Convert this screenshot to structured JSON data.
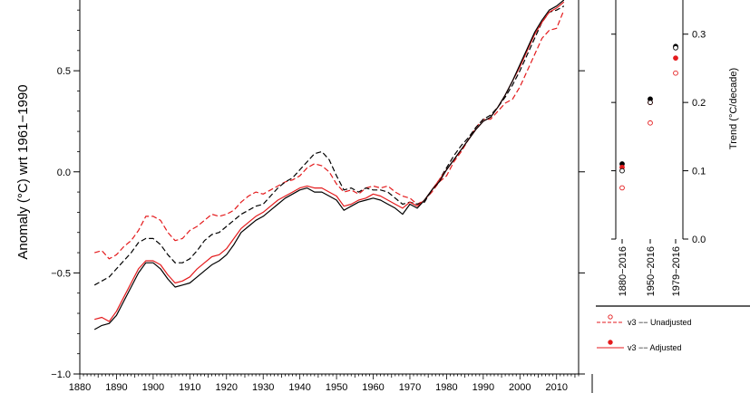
{
  "chart_data": [
    {
      "type": "line",
      "ylabel": "Anomaly (°C) wrt 1961−1990",
      "xlim": [
        1880,
        2016
      ],
      "ylim": [
        -1.0,
        0.85
      ],
      "xticks": [
        "1880",
        "1890",
        "1900",
        "1910",
        "1920",
        "1930",
        "1940",
        "1950",
        "1960",
        "1970",
        "1980",
        "1990",
        "2000",
        "2010"
      ],
      "yticks": [
        {
          "value": -1.0,
          "label": "−1.0"
        },
        {
          "value": -0.5,
          "label": "−0.5"
        },
        {
          "value": 0.0,
          "label": "0.0"
        },
        {
          "value": 0.5,
          "label": "0.5"
        }
      ],
      "series": [
        {
          "key": "v3u",
          "color": "#e41a1c",
          "dash": true,
          "x": [
            1884,
            1886,
            1888,
            1890,
            1892,
            1894,
            1896,
            1898,
            1900,
            1902,
            1904,
            1906,
            1908,
            1910,
            1912,
            1914,
            1916,
            1918,
            1920,
            1922,
            1924,
            1926,
            1928,
            1930,
            1932,
            1934,
            1936,
            1938,
            1940,
            1942,
            1944,
            1946,
            1948,
            1950,
            1952,
            1954,
            1956,
            1958,
            1960,
            1962,
            1964,
            1966,
            1968,
            1970,
            1972,
            1974,
            1976,
            1978,
            1980,
            1982,
            1984,
            1986,
            1988,
            1990,
            1992,
            1994,
            1996,
            1998,
            2000,
            2002,
            2004,
            2006,
            2008,
            2010,
            2012
          ],
          "y": [
            -0.4,
            -0.39,
            -0.43,
            -0.41,
            -0.37,
            -0.34,
            -0.29,
            -0.22,
            -0.22,
            -0.24,
            -0.3,
            -0.34,
            -0.33,
            -0.29,
            -0.27,
            -0.24,
            -0.21,
            -0.22,
            -0.21,
            -0.19,
            -0.15,
            -0.12,
            -0.1,
            -0.11,
            -0.09,
            -0.07,
            -0.05,
            -0.04,
            -0.02,
            0.02,
            0.04,
            0.03,
            0.0,
            -0.06,
            -0.1,
            -0.09,
            -0.11,
            -0.08,
            -0.07,
            -0.08,
            -0.07,
            -0.1,
            -0.12,
            -0.13,
            -0.16,
            -0.14,
            -0.1,
            -0.05,
            -0.02,
            0.05,
            0.1,
            0.16,
            0.22,
            0.26,
            0.26,
            0.3,
            0.34,
            0.36,
            0.42,
            0.5,
            0.58,
            0.66,
            0.7,
            0.71,
            0.8
          ]
        },
        {
          "key": "v4u",
          "color": "#000000",
          "dash": true,
          "x": [
            1884,
            1886,
            1888,
            1890,
            1892,
            1894,
            1896,
            1898,
            1900,
            1902,
            1904,
            1906,
            1908,
            1910,
            1912,
            1914,
            1916,
            1918,
            1920,
            1922,
            1924,
            1926,
            1928,
            1930,
            1932,
            1934,
            1936,
            1938,
            1940,
            1942,
            1944,
            1946,
            1948,
            1950,
            1952,
            1954,
            1956,
            1958,
            1960,
            1962,
            1964,
            1966,
            1968,
            1970,
            1972,
            1974,
            1976,
            1978,
            1980,
            1982,
            1984,
            1986,
            1988,
            1990,
            1992,
            1994,
            1996,
            1998,
            2000,
            2002,
            2004,
            2006,
            2008,
            2010,
            2012
          ],
          "y": [
            -0.56,
            -0.54,
            -0.52,
            -0.48,
            -0.44,
            -0.4,
            -0.35,
            -0.33,
            -0.33,
            -0.36,
            -0.41,
            -0.45,
            -0.45,
            -0.43,
            -0.39,
            -0.34,
            -0.31,
            -0.3,
            -0.27,
            -0.24,
            -0.21,
            -0.19,
            -0.17,
            -0.16,
            -0.12,
            -0.08,
            -0.05,
            -0.03,
            0.01,
            0.05,
            0.09,
            0.1,
            0.06,
            -0.02,
            -0.09,
            -0.08,
            -0.1,
            -0.08,
            -0.09,
            -0.09,
            -0.1,
            -0.13,
            -0.16,
            -0.15,
            -0.16,
            -0.15,
            -0.09,
            -0.04,
            0.02,
            0.08,
            0.13,
            0.17,
            0.22,
            0.26,
            0.28,
            0.32,
            0.37,
            0.43,
            0.5,
            0.58,
            0.66,
            0.74,
            0.79,
            0.8,
            0.82
          ]
        },
        {
          "key": "v3a",
          "color": "#e41a1c",
          "dash": false,
          "x": [
            1884,
            1886,
            1888,
            1890,
            1892,
            1894,
            1896,
            1898,
            1900,
            1902,
            1904,
            1906,
            1908,
            1910,
            1912,
            1914,
            1916,
            1918,
            1920,
            1922,
            1924,
            1926,
            1928,
            1930,
            1932,
            1934,
            1936,
            1938,
            1940,
            1942,
            1944,
            1946,
            1948,
            1950,
            1952,
            1954,
            1956,
            1958,
            1960,
            1962,
            1964,
            1966,
            1968,
            1970,
            1972,
            1974,
            1976,
            1978,
            1980,
            1982,
            1984,
            1986,
            1988,
            1990,
            1992,
            1994,
            1996,
            1998,
            2000,
            2002,
            2004,
            2006,
            2008,
            2010,
            2012
          ],
          "y": [
            -0.73,
            -0.72,
            -0.74,
            -0.69,
            -0.62,
            -0.55,
            -0.48,
            -0.44,
            -0.44,
            -0.46,
            -0.51,
            -0.55,
            -0.54,
            -0.52,
            -0.48,
            -0.45,
            -0.42,
            -0.41,
            -0.38,
            -0.33,
            -0.28,
            -0.25,
            -0.22,
            -0.2,
            -0.17,
            -0.14,
            -0.12,
            -0.1,
            -0.08,
            -0.07,
            -0.08,
            -0.08,
            -0.1,
            -0.12,
            -0.17,
            -0.16,
            -0.14,
            -0.13,
            -0.11,
            -0.12,
            -0.14,
            -0.16,
            -0.18,
            -0.15,
            -0.17,
            -0.14,
            -0.09,
            -0.04,
            0.01,
            0.06,
            0.11,
            0.16,
            0.21,
            0.25,
            0.27,
            0.32,
            0.38,
            0.45,
            0.52,
            0.6,
            0.68,
            0.74,
            0.79,
            0.81,
            0.84
          ]
        },
        {
          "key": "v4a",
          "color": "#000000",
          "dash": false,
          "x": [
            1884,
            1886,
            1888,
            1890,
            1892,
            1894,
            1896,
            1898,
            1900,
            1902,
            1904,
            1906,
            1908,
            1910,
            1912,
            1914,
            1916,
            1918,
            1920,
            1922,
            1924,
            1926,
            1928,
            1930,
            1932,
            1934,
            1936,
            1938,
            1940,
            1942,
            1944,
            1946,
            1948,
            1950,
            1952,
            1954,
            1956,
            1958,
            1960,
            1962,
            1964,
            1966,
            1968,
            1970,
            1972,
            1974,
            1976,
            1978,
            1980,
            1982,
            1984,
            1986,
            1988,
            1990,
            1992,
            1994,
            1996,
            1998,
            2000,
            2002,
            2004,
            2006,
            2008,
            2010,
            2012
          ],
          "y": [
            -0.78,
            -0.76,
            -0.75,
            -0.71,
            -0.64,
            -0.57,
            -0.5,
            -0.45,
            -0.45,
            -0.48,
            -0.53,
            -0.57,
            -0.56,
            -0.55,
            -0.52,
            -0.49,
            -0.46,
            -0.44,
            -0.41,
            -0.36,
            -0.3,
            -0.27,
            -0.24,
            -0.22,
            -0.19,
            -0.16,
            -0.13,
            -0.11,
            -0.09,
            -0.08,
            -0.1,
            -0.1,
            -0.12,
            -0.14,
            -0.19,
            -0.17,
            -0.15,
            -0.14,
            -0.13,
            -0.14,
            -0.16,
            -0.18,
            -0.21,
            -0.16,
            -0.18,
            -0.14,
            -0.09,
            -0.05,
            0.01,
            0.06,
            0.11,
            0.16,
            0.21,
            0.25,
            0.27,
            0.32,
            0.38,
            0.45,
            0.53,
            0.61,
            0.69,
            0.75,
            0.8,
            0.82,
            0.85
          ]
        }
      ]
    },
    {
      "type": "scatter",
      "ylabel": "Trend (°C/decade)",
      "ylim": [
        0.0,
        0.35
      ],
      "yticks": [
        {
          "value": 0.0,
          "label": "0.0"
        },
        {
          "value": 0.1,
          "label": "0.1"
        },
        {
          "value": 0.2,
          "label": "0.2"
        },
        {
          "value": 0.3,
          "label": "0.3"
        }
      ],
      "categories": [
        "1880−2016",
        "1950−2016",
        "1979−2016"
      ],
      "series": [
        {
          "key": "v4a",
          "marker": "filled",
          "color": "#000000",
          "values": [
            0.11,
            0.205,
            0.282
          ]
        },
        {
          "key": "v3a",
          "marker": "filled",
          "color": "#e41a1c",
          "values": [
            0.105,
            0.2,
            0.265
          ]
        },
        {
          "key": "v4u",
          "marker": "open",
          "color": "#000000",
          "values": [
            0.1,
            0.2,
            0.28
          ]
        },
        {
          "key": "v3u",
          "marker": "open",
          "color": "#e41a1c",
          "values": [
            0.075,
            0.17,
            0.243
          ]
        }
      ],
      "legend": {
        "placement": "bottom",
        "entries": [
          {
            "key": "v3u",
            "label": "v3 −− Unadjusted"
          },
          {
            "key": "v3a",
            "label": "v3 −− Adjusted"
          }
        ]
      }
    }
  ]
}
